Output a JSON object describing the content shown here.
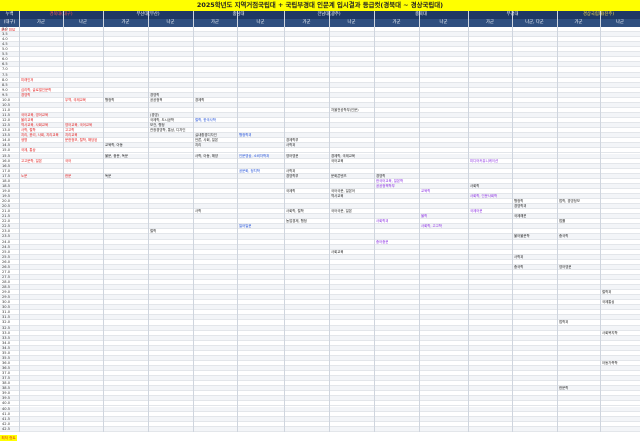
{
  "title": "2025학년도 지역거점국립대 + 국립부경대 인문계 입시결과 등급컷(경북대 ~ 경상국립대)",
  "header": {
    "row1": [
      "누백",
      "경북대(대구)",
      "",
      "부산대(부산)",
      "",
      "충남대",
      "",
      "전남대(광주)",
      "",
      "충북대",
      "",
      "부경대",
      "",
      "경상국립대(진주)",
      ""
    ],
    "row2": [
      "(대구)",
      "가군",
      "나군",
      "가군",
      "나군",
      "가군",
      "나군",
      "가군",
      "나군",
      "가군",
      "나군",
      "가군",
      "나군, 다군",
      "가군",
      "나군"
    ]
  },
  "top_label": "조도 미달",
  "rows": [
    "3.0",
    "3.5",
    "4.0",
    "4.5",
    "5.0",
    "5.5",
    "6.0",
    "6.5",
    "7.0",
    "7.5",
    "8.0",
    "8.5",
    "9.0",
    "9.5",
    "10.0",
    "10.5",
    "11.0",
    "11.5",
    "12.0",
    "12.5",
    "13.0",
    "13.5",
    "14.0",
    "14.5",
    "15.0",
    "15.5",
    "16.0",
    "16.5",
    "17.0",
    "17.5",
    "18.0",
    "18.5",
    "19.0",
    "19.5",
    "20.0",
    "20.5",
    "21.0",
    "21.5",
    "22.0",
    "22.5",
    "23.0",
    "23.5",
    "24.0",
    "24.5",
    "25.0",
    "25.5",
    "26.0",
    "26.5",
    "27.0",
    "27.5",
    "28.0",
    "28.5",
    "29.0",
    "29.5",
    "30.0",
    "30.5",
    "31.0",
    "31.5",
    "32.0",
    "32.5",
    "33.0",
    "33.5",
    "34.0",
    "34.5",
    "35.0",
    "35.5",
    "36.0",
    "36.5",
    "37.0",
    "37.5",
    "38.0",
    "38.5",
    "39.0",
    "39.5",
    "40.0",
    "40.5",
    "41.0",
    "41.5",
    "42.0",
    "42.5"
  ],
  "items": [
    {
      "text": "미래인재",
      "row": 10,
      "col": 1,
      "color": "red"
    },
    {
      "text": "심리학, 글로벌인문학",
      "row": 12,
      "col": 1,
      "color": "red"
    },
    {
      "text": "경영학",
      "row": 13,
      "col": 1,
      "color": "red"
    },
    {
      "text": "행정학",
      "row": 14,
      "col": 3,
      "color": "dark"
    },
    {
      "text": "경영학",
      "row": 13,
      "col": 4,
      "color": "dark"
    },
    {
      "text": "공공정책",
      "row": 14,
      "col": 4,
      "color": "dark"
    },
    {
      "text": "무역, 국제교육",
      "row": 14,
      "col": 2,
      "color": "red"
    },
    {
      "text": "경제학",
      "row": 14,
      "col": 5,
      "color": "dark"
    },
    {
      "text": "자율전공학부(인문)",
      "row": 16,
      "col": 8,
      "color": "dark"
    },
    {
      "text": "국어교육, 영어교육",
      "row": 17,
      "col": 1,
      "color": "red"
    },
    {
      "text": "(경영)",
      "row": 17,
      "col": 4,
      "color": "dark"
    },
    {
      "text": "국제학, 도시공학",
      "row": 18,
      "col": 4,
      "color": "dark"
    },
    {
      "text": "철학, 한국사학",
      "row": 18,
      "col": 5,
      "color": "blue"
    },
    {
      "text": "물리교육",
      "row": 18,
      "col": 1,
      "color": "red"
    },
    {
      "text": "역사교육, 사회교육",
      "row": 19,
      "col": 1,
      "color": "red"
    },
    {
      "text": "영어교육, 국어교육",
      "row": 19,
      "col": 2,
      "color": "red"
    },
    {
      "text": "보건, 행정",
      "row": 19,
      "col": 4,
      "color": "dark"
    },
    {
      "text": "사학, 철학",
      "row": 20,
      "col": 1,
      "color": "red"
    },
    {
      "text": "고고학",
      "row": 20,
      "col": 2,
      "color": "red"
    },
    {
      "text": "관광경영학, 통상, 디자인",
      "row": 20,
      "col": 4,
      "color": "dark"
    },
    {
      "text": "실내환경디자인",
      "row": 21,
      "col": 5,
      "color": "dark"
    },
    {
      "text": "지리, 윤리, 사회, 지리교육",
      "row": 21,
      "col": 1,
      "color": "red"
    },
    {
      "text": "지리교육",
      "row": 21,
      "col": 2,
      "color": "red"
    },
    {
      "text": "행정학과",
      "row": 21,
      "col": 6,
      "color": "blue"
    },
    {
      "text": "생명",
      "row": 22,
      "col": 1,
      "color": "red"
    },
    {
      "text": "문헌정보, 철학, 해당된",
      "row": 22,
      "col": 2,
      "color": "red"
    },
    {
      "text": "언론, 사회, 일본",
      "row": 22,
      "col": 5,
      "color": "dark"
    },
    {
      "text": "경제학부",
      "row": 22,
      "col": 7,
      "color": "dark"
    },
    {
      "text": "교육학, 아동",
      "row": 23,
      "col": 3,
      "color": "dark"
    },
    {
      "text": "지리",
      "row": 23,
      "col": 5,
      "color": "dark"
    },
    {
      "text": "사학과",
      "row": 23,
      "col": 7,
      "color": "dark"
    },
    {
      "text": "국제, 통상",
      "row": 24,
      "col": 1,
      "color": "red"
    },
    {
      "text": "불문, 중문, 독문",
      "row": 25,
      "col": 3,
      "color": "dark"
    },
    {
      "text": "사학, 아동, 해양",
      "row": 25,
      "col": 5,
      "color": "dark"
    },
    {
      "text": "인문영상, 소비자학과",
      "row": 25,
      "col": 6,
      "color": "blue"
    },
    {
      "text": "영어영문",
      "row": 25,
      "col": 7,
      "color": "dark"
    },
    {
      "text": "경제학, 국제교육",
      "row": 25,
      "col": 8,
      "color": "dark"
    },
    {
      "text": "국어교육",
      "row": 26,
      "col": 8,
      "color": "dark"
    },
    {
      "text": "미디어커뮤니케이션",
      "row": 26,
      "col": 11,
      "color": "purple"
    },
    {
      "text": "고고문학, 일본",
      "row": 26,
      "col": 1,
      "color": "red"
    },
    {
      "text": "국어",
      "row": 26,
      "col": 2,
      "color": "red"
    },
    {
      "text": "노문",
      "row": 29,
      "col": 1,
      "color": "red"
    },
    {
      "text": "한문",
      "row": 29,
      "col": 2,
      "color": "red"
    },
    {
      "text": "독문",
      "row": 29,
      "col": 3,
      "color": "dark"
    },
    {
      "text": "공문화, 정치학",
      "row": 28,
      "col": 6,
      "color": "blue"
    },
    {
      "text": "사학과",
      "row": 28,
      "col": 7,
      "color": "dark"
    },
    {
      "text": "문화콘텐츠",
      "row": 29,
      "col": 8,
      "color": "dark"
    },
    {
      "text": "경영학",
      "row": 29,
      "col": 9,
      "color": "dark"
    },
    {
      "text": "경영학부",
      "row": 29,
      "col": 7,
      "color": "dark"
    },
    {
      "text": "한국어교육, 일본학",
      "row": 30,
      "col": 9,
      "color": "purple"
    },
    {
      "text": "사회학",
      "row": 31,
      "col": 11,
      "color": "dark"
    },
    {
      "text": "국제학",
      "row": 32,
      "col": 7,
      "color": "dark"
    },
    {
      "text": "국어국문, 일본어",
      "row": 32,
      "col": 8,
      "color": "dark"
    },
    {
      "text": "공공정책학부",
      "row": 31,
      "col": 9,
      "color": "purple"
    },
    {
      "text": "교육학",
      "row": 32,
      "col": 10,
      "color": "purple"
    },
    {
      "text": "역사교육",
      "row": 33,
      "col": 8,
      "color": "dark"
    },
    {
      "text": "사회학, 인문사회학",
      "row": 33,
      "col": 11,
      "color": "purple"
    },
    {
      "text": "법학, 경영정보",
      "row": 34,
      "col": 13,
      "color": "dark"
    },
    {
      "text": "행정학",
      "row": 34,
      "col": 12,
      "color": "dark"
    },
    {
      "text": "경영학과",
      "row": 35,
      "col": 12,
      "color": "dark"
    },
    {
      "text": "사학",
      "row": 36,
      "col": 5,
      "color": "dark"
    },
    {
      "text": "사회학, 철학",
      "row": 36,
      "col": 7,
      "color": "dark"
    },
    {
      "text": "국어국문, 일본",
      "row": 36,
      "col": 8,
      "color": "dark"
    },
    {
      "text": "국제어문",
      "row": 36,
      "col": 11,
      "color": "purple"
    },
    {
      "text": "물학",
      "row": 37,
      "col": 10,
      "color": "purple"
    },
    {
      "text": "국제해운",
      "row": 37,
      "col": 12,
      "color": "dark"
    },
    {
      "text": "법률",
      "row": 38,
      "col": 13,
      "color": "dark"
    },
    {
      "text": "농업경제, 행정",
      "row": 38,
      "col": 7,
      "color": "dark"
    },
    {
      "text": "사회학과",
      "row": 38,
      "col": 9,
      "color": "purple"
    },
    {
      "text": "사회학, 고고학",
      "row": 39,
      "col": 10,
      "color": "purple"
    },
    {
      "text": "일어일문",
      "row": 39,
      "col": 6,
      "color": "blue"
    },
    {
      "text": "철학",
      "row": 40,
      "col": 4,
      "color": "dark"
    },
    {
      "text": "불어불문학",
      "row": 41,
      "col": 12,
      "color": "dark"
    },
    {
      "text": "중국학",
      "row": 41,
      "col": 13,
      "color": "dark"
    },
    {
      "text": "중어중문",
      "row": 42,
      "col": 9,
      "color": "purple"
    },
    {
      "text": "사회교육",
      "row": 44,
      "col": 8,
      "color": "dark"
    },
    {
      "text": "사학과",
      "row": 45,
      "col": 12,
      "color": "dark"
    },
    {
      "text": "중국학",
      "row": 47,
      "col": 12,
      "color": "dark"
    },
    {
      "text": "영어영문",
      "row": 47,
      "col": 13,
      "color": "dark"
    },
    {
      "text": "철학과",
      "row": 52,
      "col": 14,
      "color": "dark"
    },
    {
      "text": "국제통상",
      "row": 54,
      "col": 14,
      "color": "dark"
    },
    {
      "text": "법학과",
      "row": 58,
      "col": 13,
      "color": "dark"
    },
    {
      "text": "사회복지학",
      "row": 60,
      "col": 14,
      "color": "dark"
    },
    {
      "text": "아동가족학",
      "row": 66,
      "col": 14,
      "color": "dark"
    },
    {
      "text": "한문학",
      "row": 71,
      "col": 13,
      "color": "dark"
    }
  ],
  "footer": {
    "label": "최저 컷트"
  }
}
